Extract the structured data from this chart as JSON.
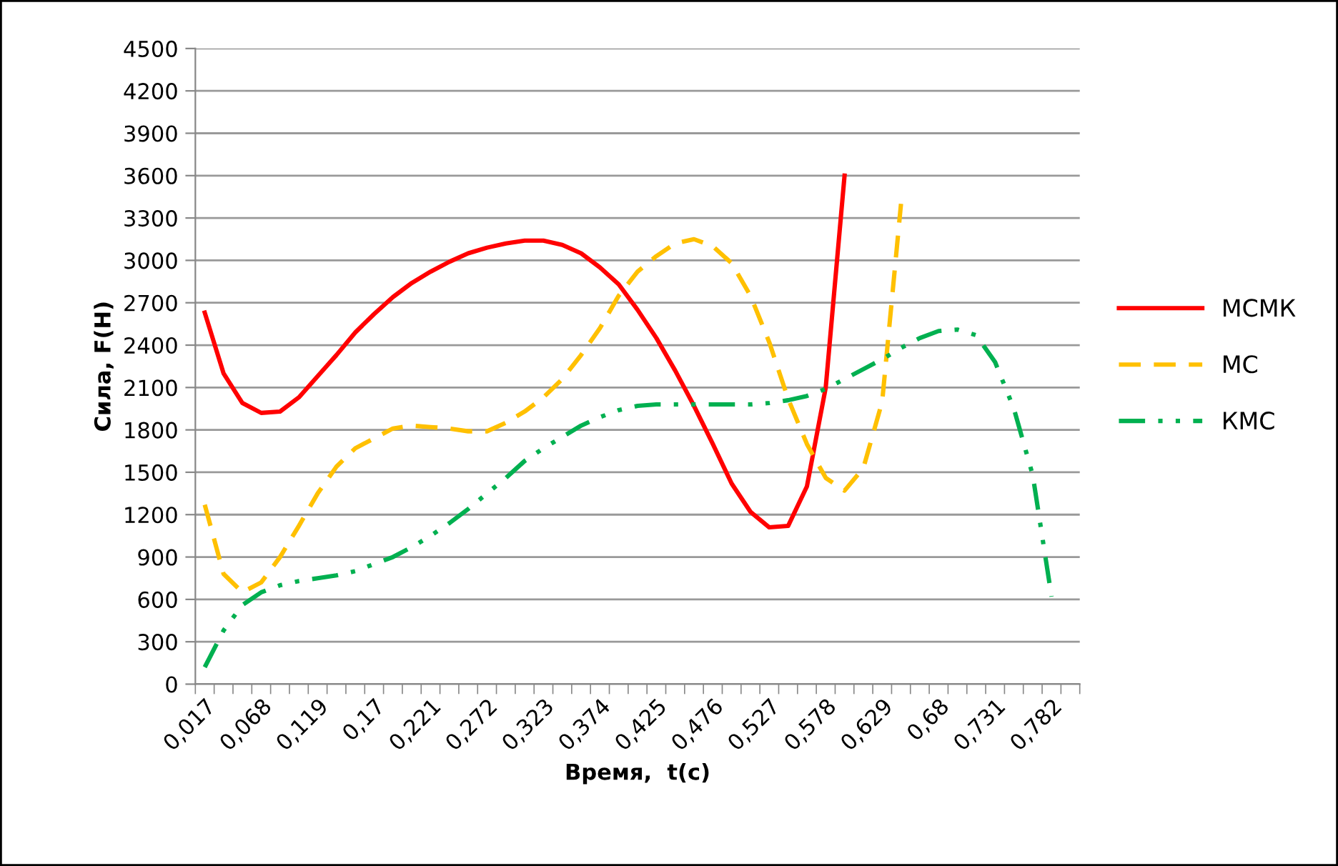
{
  "chart_data": {
    "type": "line",
    "xlabel": "Время,  t(с)",
    "ylabel": "Сила, F(Н)",
    "categories": [
      "0,017",
      null,
      null,
      "0,068",
      null,
      null,
      "0,119",
      null,
      null,
      "0,17",
      null,
      null,
      "0,221",
      null,
      null,
      "0,272",
      null,
      null,
      "0,323",
      null,
      null,
      "0,374",
      null,
      null,
      "0,425",
      null,
      null,
      "0,476",
      null,
      null,
      "0,527",
      null,
      null,
      "0,578",
      null,
      null,
      "0,629",
      null,
      null,
      "0,68",
      null,
      null,
      "0,731",
      null,
      null,
      "0,782",
      null
    ],
    "series": [
      {
        "name": "МСМК",
        "color": "#ff0000",
        "line_style": "solid",
        "values": [
          2630,
          2200,
          1990,
          1920,
          1930,
          2030,
          2180,
          2330,
          2490,
          2620,
          2740,
          2840,
          2920,
          2990,
          3050,
          3090,
          3120,
          3140,
          3140,
          3110,
          3050,
          2950,
          2830,
          2650,
          2450,
          2220,
          1970,
          1700,
          1420,
          1220,
          1110,
          1120,
          1400,
          2100,
          3600,
          null,
          null,
          null,
          null,
          null,
          null,
          null,
          null,
          null,
          null,
          null,
          null
        ]
      },
      {
        "name": "МС",
        "color": "#ffc000",
        "line_style": "dashed",
        "values": [
          1270,
          780,
          650,
          720,
          900,
          1120,
          1350,
          1540,
          1670,
          1740,
          1810,
          1830,
          1820,
          1810,
          1790,
          1790,
          1850,
          1930,
          2030,
          2160,
          2330,
          2520,
          2750,
          2920,
          3030,
          3120,
          3150,
          3100,
          2980,
          2750,
          2420,
          2020,
          1700,
          1460,
          1370,
          1530,
          2000,
          3400,
          null,
          null,
          null,
          null,
          null,
          null,
          null,
          null,
          null
        ]
      },
      {
        "name": "КМС",
        "color": "#00b050",
        "line_style": "dashdot",
        "values": [
          120,
          380,
          560,
          650,
          700,
          730,
          750,
          770,
          800,
          850,
          900,
          970,
          1050,
          1140,
          1240,
          1350,
          1460,
          1580,
          1670,
          1750,
          1830,
          1890,
          1940,
          1970,
          1980,
          1980,
          1980,
          1980,
          1980,
          1980,
          1990,
          2010,
          2040,
          2090,
          2160,
          2230,
          2300,
          2380,
          2450,
          2500,
          2510,
          2470,
          2280,
          1950,
          1480,
          620,
          null
        ]
      }
    ],
    "ylim": [
      0,
      4500
    ],
    "yticks": [
      0,
      300,
      600,
      900,
      1200,
      1500,
      1800,
      2100,
      2400,
      2700,
      3000,
      3300,
      3600,
      3900,
      4200,
      4500
    ],
    "grid": "y",
    "legend": "right",
    "marker": "none"
  }
}
